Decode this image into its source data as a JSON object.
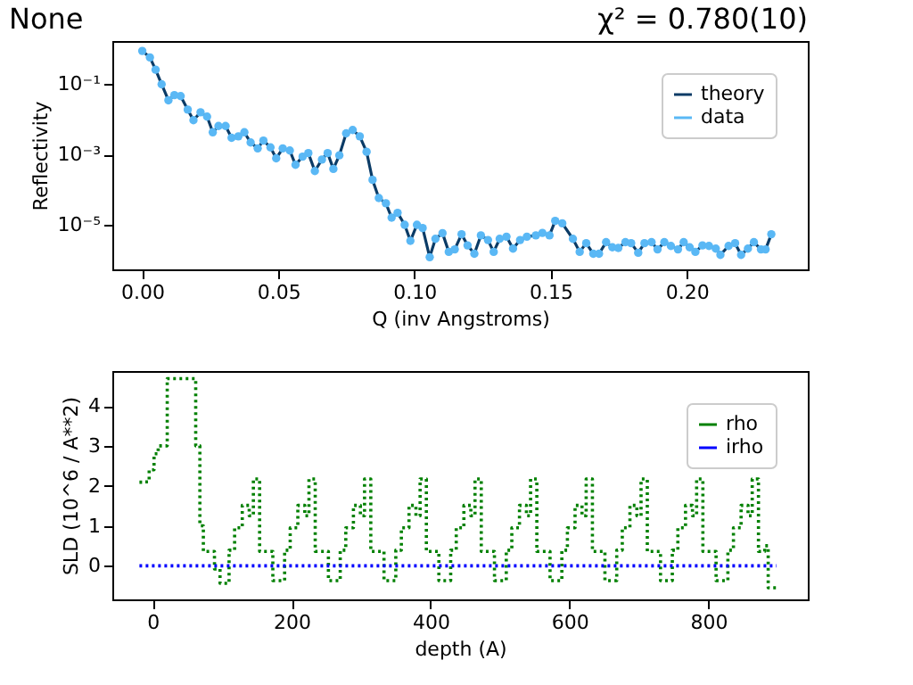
{
  "chart_data": [
    {
      "type": "line",
      "title": "None",
      "annotations": [
        "χ² = 0.780(10)"
      ],
      "xlabel": "Q (inv Angstroms)",
      "ylabel": "Reflectivity",
      "log": "y",
      "grid": false,
      "legend": "top right",
      "xlim": [
        -0.011,
        0.2445
      ],
      "xticks": [
        {
          "value": 0,
          "label": "0.00"
        },
        {
          "value": 0.05,
          "label": "0.05"
        },
        {
          "value": 0.1,
          "label": "0.10"
        },
        {
          "value": 0.15,
          "label": "0.15"
        },
        {
          "value": 0.2,
          "label": "0.20"
        }
      ],
      "ylim": [
        5.4e-07,
        1.7
      ],
      "yticks": [
        {
          "value": 0.1,
          "label": "10⁻¹"
        },
        {
          "value": 0.001,
          "label": "10⁻³"
        },
        {
          "value": 1e-05,
          "label": "10⁻⁵"
        }
      ],
      "x": [
        0,
        0.0028,
        0.0049,
        0.0071,
        0.0096,
        0.0118,
        0.0141,
        0.0167,
        0.0188,
        0.0214,
        0.0238,
        0.0259,
        0.028,
        0.0306,
        0.0328,
        0.0353,
        0.0375,
        0.0398,
        0.0424,
        0.0445,
        0.0471,
        0.0492,
        0.0516,
        0.0542,
        0.0563,
        0.0589,
        0.061,
        0.0634,
        0.066,
        0.0681,
        0.0702,
        0.0724,
        0.0749,
        0.0773,
        0.0799,
        0.0824,
        0.0846,
        0.0869,
        0.0895,
        0.0916,
        0.0938,
        0.0964,
        0.0985,
        0.1009,
        0.103,
        0.1056,
        0.1077,
        0.1103,
        0.1126,
        0.1148,
        0.1173,
        0.1195,
        0.122,
        0.1244,
        0.127,
        0.1291,
        0.1313,
        0.1338,
        0.1362,
        0.1388,
        0.1413,
        0.1446,
        0.147,
        0.1496,
        0.1517,
        0.1543,
        0.1582,
        0.1607,
        0.1631,
        0.1657,
        0.1678,
        0.1704,
        0.1727,
        0.1749,
        0.1775,
        0.1796,
        0.1822,
        0.1845,
        0.1871,
        0.1893,
        0.1918,
        0.1942,
        0.1968,
        0.1989,
        0.2011,
        0.2032,
        0.2058,
        0.2082,
        0.2107,
        0.2124,
        0.2154,
        0.2178,
        0.22,
        0.2225,
        0.2247,
        0.2273,
        0.229,
        0.2311
      ],
      "series": [
        {
          "name": "theory",
          "type": "line",
          "color": "#0b3b66",
          "marker": "none",
          "values": [
            0.89,
            0.58,
            0.26,
            0.1,
            0.035,
            0.049,
            0.046,
            0.019,
            0.0095,
            0.016,
            0.012,
            0.0043,
            0.0065,
            0.0065,
            0.003,
            0.0033,
            0.0043,
            0.0022,
            0.0015,
            0.0025,
            0.0016,
            0.00078,
            0.0015,
            0.0013,
            0.00051,
            0.00087,
            0.0011,
            0.00034,
            0.00072,
            0.0011,
            0.00039,
            0.00095,
            0.004,
            0.005,
            0.0033,
            0.0012,
            0.00019,
            5.8e-05,
            4.1e-05,
            1.6e-05,
            2.2e-05,
            1e-05,
            3.5e-06,
            1e-05,
            8.1e-06,
            1.2e-06,
            4e-06,
            5.8e-06,
            1.7e-06,
            2e-06,
            5.4e-06,
            2.6e-06,
            1.5e-06,
            5e-06,
            3.7e-06,
            1.7e-06,
            4e-06,
            4.6e-06,
            2.1e-06,
            3.7e-06,
            4.6e-06,
            5e-06,
            5.9e-06,
            5e-06,
            1.3e-05,
            1.1e-05,
            4e-06,
            1.7e-06,
            3e-06,
            1.5e-06,
            1.5e-06,
            3.2e-06,
            2.3e-06,
            2.2e-06,
            3.2e-06,
            3e-06,
            1.6e-06,
            3e-06,
            3.2e-06,
            2e-06,
            3.2e-06,
            2.5e-06,
            2e-06,
            3.2e-06,
            2.3e-06,
            1.7e-06,
            2.6e-06,
            2.5e-06,
            2.1e-06,
            1.4e-06,
            2.5e-06,
            3e-06,
            1.4e-06,
            2.1e-06,
            3.2e-06,
            2e-06,
            2e-06,
            5.4e-06
          ]
        },
        {
          "name": "data",
          "type": "scatter",
          "color": "#5ab8f5",
          "marker": "circle",
          "values": [
            0.89,
            0.58,
            0.26,
            0.1,
            0.035,
            0.049,
            0.046,
            0.019,
            0.0095,
            0.016,
            0.012,
            0.0043,
            0.0065,
            0.0065,
            0.003,
            0.0033,
            0.0043,
            0.0022,
            0.0015,
            0.0025,
            0.0016,
            0.00078,
            0.0015,
            0.0013,
            0.00051,
            0.00087,
            0.0011,
            0.00034,
            0.00072,
            0.0011,
            0.00039,
            0.00095,
            0.004,
            0.005,
            0.0033,
            0.0012,
            0.00019,
            5.8e-05,
            4.1e-05,
            1.6e-05,
            2.2e-05,
            1e-05,
            3.5e-06,
            1e-05,
            8.1e-06,
            1.2e-06,
            4e-06,
            5.8e-06,
            1.7e-06,
            2e-06,
            5.4e-06,
            2.6e-06,
            1.5e-06,
            5e-06,
            3.7e-06,
            1.7e-06,
            4e-06,
            4.6e-06,
            2.1e-06,
            3.7e-06,
            4.6e-06,
            5e-06,
            5.9e-06,
            5e-06,
            1.3e-05,
            1.1e-05,
            4e-06,
            1.7e-06,
            3e-06,
            1.5e-06,
            1.5e-06,
            3.2e-06,
            2.3e-06,
            2.2e-06,
            3.2e-06,
            3e-06,
            1.6e-06,
            3e-06,
            3.2e-06,
            2e-06,
            3.2e-06,
            2.5e-06,
            2e-06,
            3.2e-06,
            2.3e-06,
            1.7e-06,
            2.6e-06,
            2.5e-06,
            2.1e-06,
            1.4e-06,
            2.5e-06,
            3e-06,
            1.4e-06,
            2.1e-06,
            3.2e-06,
            2e-06,
            2e-06,
            5.4e-06
          ]
        }
      ]
    },
    {
      "type": "step",
      "xlabel": "depth (A)",
      "ylabel": "SLD (10^6 / A**2)",
      "grid": false,
      "legend": "top right",
      "line_style": "dotted",
      "xlim": [
        -58,
        943
      ],
      "xticks": [
        0,
        200,
        400,
        600,
        800
      ],
      "ylim": [
        -0.84,
        4.87
      ],
      "yticks": [
        0,
        1,
        2,
        3,
        4
      ],
      "series": [
        {
          "name": "rho",
          "color": "#008000",
          "x": [
            -19,
            -12,
            -5,
            2,
            8,
            21,
            62,
            68,
            73,
            89,
            97,
            110,
            118,
            129,
            139,
            145,
            154,
            173,
            190,
            198,
            209,
            219,
            225,
            234,
            253,
            270,
            278,
            289,
            299,
            305,
            314,
            333,
            350,
            358,
            369,
            379,
            385,
            394,
            412,
            429,
            437,
            448,
            458,
            464,
            473,
            492,
            509,
            517,
            528,
            538,
            544,
            553,
            572,
            589,
            597,
            608,
            618,
            624,
            633,
            651,
            668,
            676,
            687,
            697,
            703,
            712,
            731,
            748,
            756,
            767,
            777,
            783,
            792,
            811,
            828,
            836,
            847,
            857,
            863,
            872,
            881,
            886,
            898
          ],
          "values": [
            2.09,
            2.1,
            2.4,
            2.8,
            3.0,
            4.68,
            3.0,
            1.0,
            0.36,
            -0.08,
            -0.44,
            0.39,
            0.95,
            1.51,
            1.25,
            2.17,
            0.36,
            -0.37,
            0.39,
            0.95,
            1.51,
            1.25,
            2.17,
            0.36,
            -0.37,
            0.39,
            0.95,
            1.51,
            1.25,
            2.17,
            0.36,
            -0.37,
            0.39,
            0.95,
            1.51,
            1.25,
            2.17,
            0.36,
            -0.37,
            0.39,
            0.95,
            1.51,
            1.25,
            2.17,
            0.36,
            -0.37,
            0.39,
            0.95,
            1.51,
            1.25,
            2.17,
            0.36,
            -0.37,
            0.39,
            0.95,
            1.51,
            1.25,
            2.17,
            0.36,
            -0.37,
            0.39,
            0.95,
            1.51,
            1.25,
            2.17,
            0.36,
            -0.37,
            0.39,
            0.95,
            1.51,
            1.25,
            2.17,
            0.36,
            -0.37,
            0.39,
            0.95,
            1.51,
            1.25,
            2.17,
            0.36,
            0.5,
            -0.55,
            -0.55
          ]
        },
        {
          "name": "irho",
          "color": "#0000ff",
          "x": [
            -19,
            898
          ],
          "values": [
            0,
            0
          ]
        }
      ]
    }
  ]
}
